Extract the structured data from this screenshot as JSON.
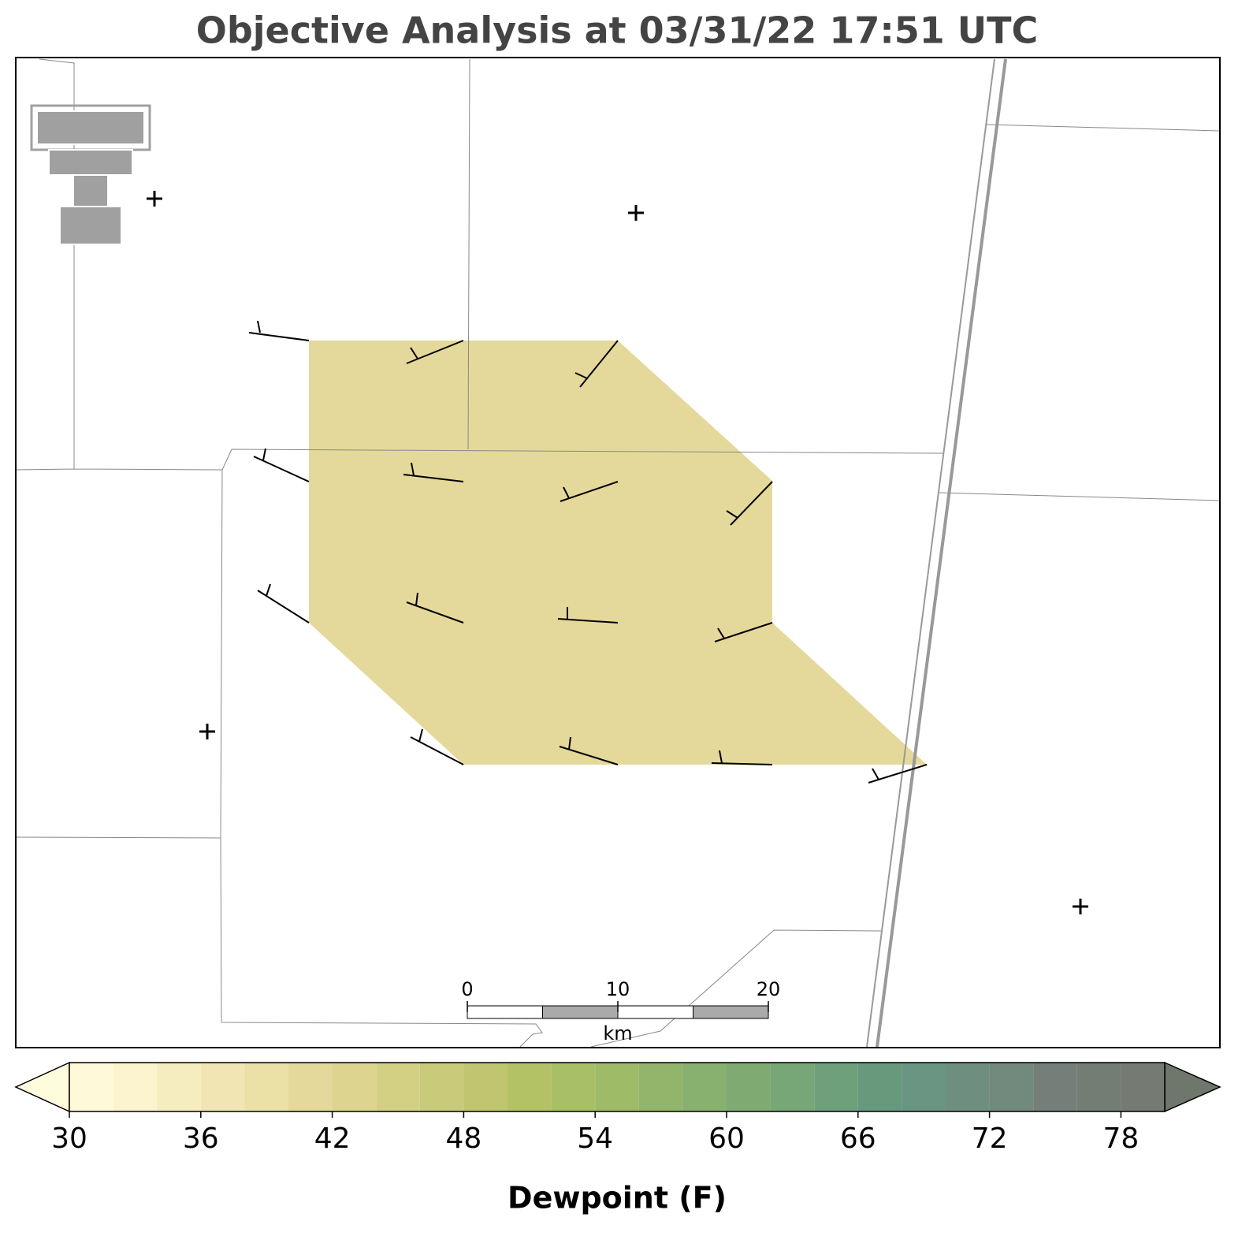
{
  "chart_data": {
    "type": "filled-contour",
    "title": "Objective Analysis at 03/31/22 17:51 UTC",
    "region_value": 41,
    "colorbar": {
      "label": "Dewpoint (F)",
      "lim": [
        30,
        80
      ],
      "ticks": [
        30,
        36,
        42,
        48,
        54,
        60,
        66,
        72,
        78
      ],
      "levels": [
        30,
        32,
        34,
        36,
        38,
        40,
        42,
        44,
        46,
        48,
        50,
        52,
        54,
        56,
        58,
        60,
        62,
        64,
        66,
        68,
        70,
        72,
        74,
        76,
        78,
        80
      ],
      "colors": [
        "#fef9d8",
        "#fbf4cf",
        "#f5ecc0",
        "#f1e6b3",
        "#ebe0a5",
        "#e4d99a",
        "#ddd58f",
        "#d3d084",
        "#c9ca7a",
        "#c0c670",
        "#b4c266",
        "#a9bf65",
        "#9ebb67",
        "#93b56b",
        "#88b06f",
        "#7fab73",
        "#77a677",
        "#6ea07b",
        "#67997d",
        "#6a9582",
        "#6e8f80",
        "#718a7d",
        "#737f78",
        "#737d74",
        "#757b72"
      ],
      "under_color": "#fffbdc",
      "over_color": "#6f766b"
    },
    "scale_bar": {
      "lim": [
        0,
        20
      ],
      "ticks": [
        0,
        10,
        20
      ],
      "unit": "km"
    }
  }
}
